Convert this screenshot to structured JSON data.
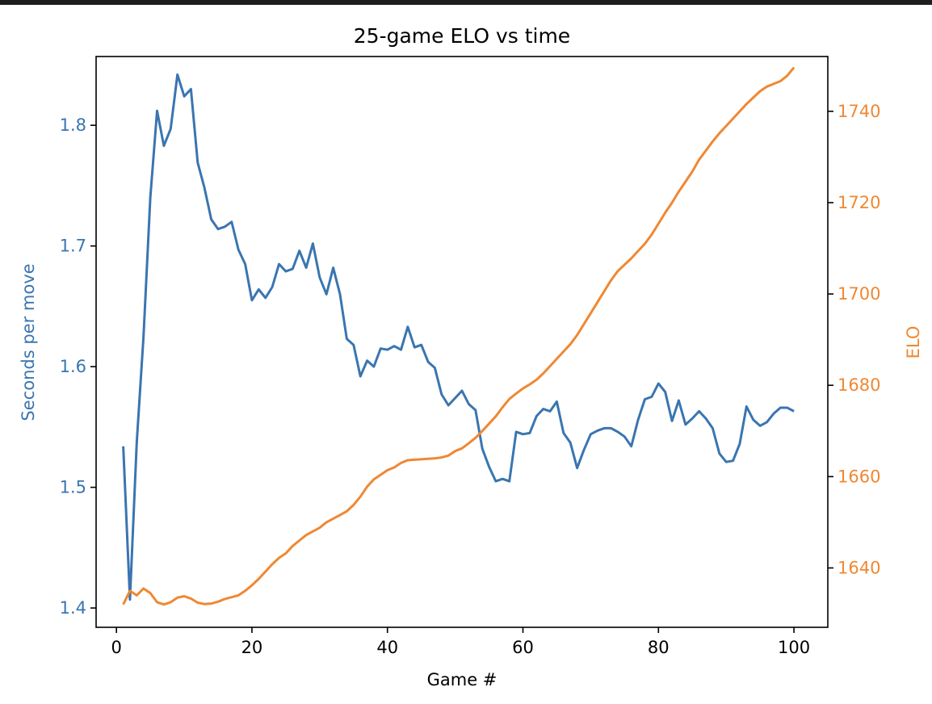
{
  "chart_data": {
    "type": "line",
    "title": "25-game ELO vs time",
    "xlabel": "Game #",
    "ylabel": "Seconds per move",
    "y2label": "ELO",
    "xlim": [
      -3,
      105
    ],
    "ylim": [
      1.384,
      1.857
    ],
    "y2lim": [
      1627,
      1752
    ],
    "xticks": [
      "0",
      "20",
      "40",
      "60",
      "80",
      "100"
    ],
    "yticks": [
      "1.4",
      "1.5",
      "1.6",
      "1.7",
      "1.8"
    ],
    "y2ticks": [
      "1640",
      "1660",
      "1680",
      "1700",
      "1720",
      "1740"
    ],
    "grid": false,
    "legend": "none",
    "colors": {
      "seconds": "#3a75b0",
      "elo": "#ef8833",
      "axis": "#000000"
    },
    "x": [
      1,
      2,
      3,
      4,
      5,
      6,
      7,
      8,
      9,
      10,
      11,
      12,
      13,
      14,
      15,
      16,
      17,
      18,
      19,
      20,
      21,
      22,
      23,
      24,
      25,
      26,
      27,
      28,
      29,
      30,
      31,
      32,
      33,
      34,
      35,
      36,
      37,
      38,
      39,
      40,
      41,
      42,
      43,
      44,
      45,
      46,
      47,
      48,
      49,
      50,
      51,
      52,
      53,
      54,
      55,
      56,
      57,
      58,
      59,
      60,
      61,
      62,
      63,
      64,
      65,
      66,
      67,
      68,
      69,
      70,
      71,
      72,
      73,
      74,
      75,
      76,
      77,
      78,
      79,
      80,
      81,
      82,
      83,
      84,
      85,
      86,
      87,
      88,
      89,
      90,
      91,
      92,
      93,
      94,
      95,
      96,
      97,
      98,
      99,
      100
    ],
    "series": [
      {
        "key": "seconds",
        "axis": "left",
        "values": [
          1.534,
          1.407,
          1.537,
          1.625,
          1.74,
          1.812,
          1.783,
          1.797,
          1.842,
          1.824,
          1.83,
          1.769,
          1.748,
          1.722,
          1.714,
          1.716,
          1.72,
          1.697,
          1.685,
          1.655,
          1.664,
          1.657,
          1.666,
          1.685,
          1.679,
          1.681,
          1.696,
          1.682,
          1.702,
          1.674,
          1.66,
          1.682,
          1.66,
          1.623,
          1.618,
          1.592,
          1.605,
          1.6,
          1.615,
          1.614,
          1.617,
          1.614,
          1.633,
          1.616,
          1.618,
          1.604,
          1.599,
          1.577,
          1.568,
          1.574,
          1.58,
          1.569,
          1.564,
          1.532,
          1.517,
          1.505,
          1.507,
          1.505,
          1.546,
          1.544,
          1.545,
          1.559,
          1.565,
          1.563,
          1.571,
          1.545,
          1.537,
          1.516,
          1.531,
          1.544,
          1.547,
          1.549,
          1.549,
          1.546,
          1.542,
          1.534,
          1.556,
          1.573,
          1.575,
          1.586,
          1.579,
          1.555,
          1.572,
          1.552,
          1.557,
          1.563,
          1.557,
          1.549,
          1.528,
          1.521,
          1.522,
          1.536,
          1.567,
          1.556,
          1.551,
          1.554,
          1.561,
          1.566,
          1.566,
          1.563
        ]
      },
      {
        "key": "elo",
        "axis": "right",
        "values": [
          1632,
          1635,
          1634,
          1635.5,
          1634.5,
          1632.5,
          1632,
          1632.5,
          1633.5,
          1633.8,
          1633.3,
          1632.4,
          1632.1,
          1632.2,
          1632.6,
          1633.2,
          1633.6,
          1634.0,
          1635.0,
          1636.2,
          1637.6,
          1639.2,
          1640.8,
          1642.2,
          1643.2,
          1644.8,
          1646.0,
          1647.2,
          1648.0,
          1648.8,
          1650.0,
          1650.8,
          1651.6,
          1652.4,
          1653.8,
          1655.6,
          1657.8,
          1659.4,
          1660.4,
          1661.4,
          1662.0,
          1663.0,
          1663.6,
          1663.7,
          1663.8,
          1663.9,
          1664.0,
          1664.2,
          1664.6,
          1665.6,
          1666.2,
          1667.3,
          1668.5,
          1670.0,
          1671.6,
          1673.2,
          1675.2,
          1677.0,
          1678.2,
          1679.3,
          1680.2,
          1681.2,
          1682.6,
          1684.2,
          1685.8,
          1687.4,
          1689.0,
          1691.0,
          1693.4,
          1695.8,
          1698.2,
          1700.6,
          1703.0,
          1705.0,
          1706.4,
          1707.8,
          1709.4,
          1711.0,
          1713.0,
          1715.4,
          1717.8,
          1720.0,
          1722.4,
          1724.6,
          1726.8,
          1729.4,
          1731.4,
          1733.4,
          1735.2,
          1736.8,
          1738.4,
          1740.0,
          1741.6,
          1743.0,
          1744.4,
          1745.4,
          1746.0,
          1746.6,
          1747.8,
          1749.6
        ]
      }
    ]
  }
}
